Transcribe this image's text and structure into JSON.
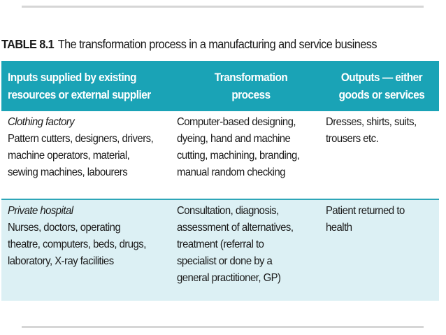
{
  "caption": {
    "label": "TABLE 8.1",
    "text": "The transformation process in a manufacturing and service business"
  },
  "header": {
    "inputs": [
      "Inputs supplied by existing",
      "resources or external supplier"
    ],
    "transformation": [
      "Transformation",
      "process"
    ],
    "outputs": [
      "Outputs — either",
      "goods or services"
    ]
  },
  "rows": [
    {
      "category": "Clothing factory",
      "inputs": [
        "Pattern cutters, designers, drivers,",
        "machine operators, material,",
        "sewing machines, labourers"
      ],
      "transformation": [
        "Computer-based designing,",
        "dyeing, hand and machine",
        "cutting, machining, branding,",
        "manual random checking"
      ],
      "outputs": [
        "Dresses, shirts, suits,",
        "trousers etc."
      ]
    },
    {
      "category": "Private hospital",
      "inputs": [
        "Nurses, doctors, operating",
        "theatre, computers, beds, drugs,",
        "laboratory, X-ray facilities"
      ],
      "transformation": [
        "Consultation, diagnosis,",
        "assessment of alternatives,",
        "treatment (referral to",
        "specialist or done by a",
        "general practitioner, GP)"
      ],
      "outputs": [
        "Patient returned to",
        "health"
      ]
    }
  ],
  "colors": {
    "header_bg": "#1aa3b6",
    "row_alt_bg": "#dcf0f4",
    "rule": "#d6d6d6"
  }
}
